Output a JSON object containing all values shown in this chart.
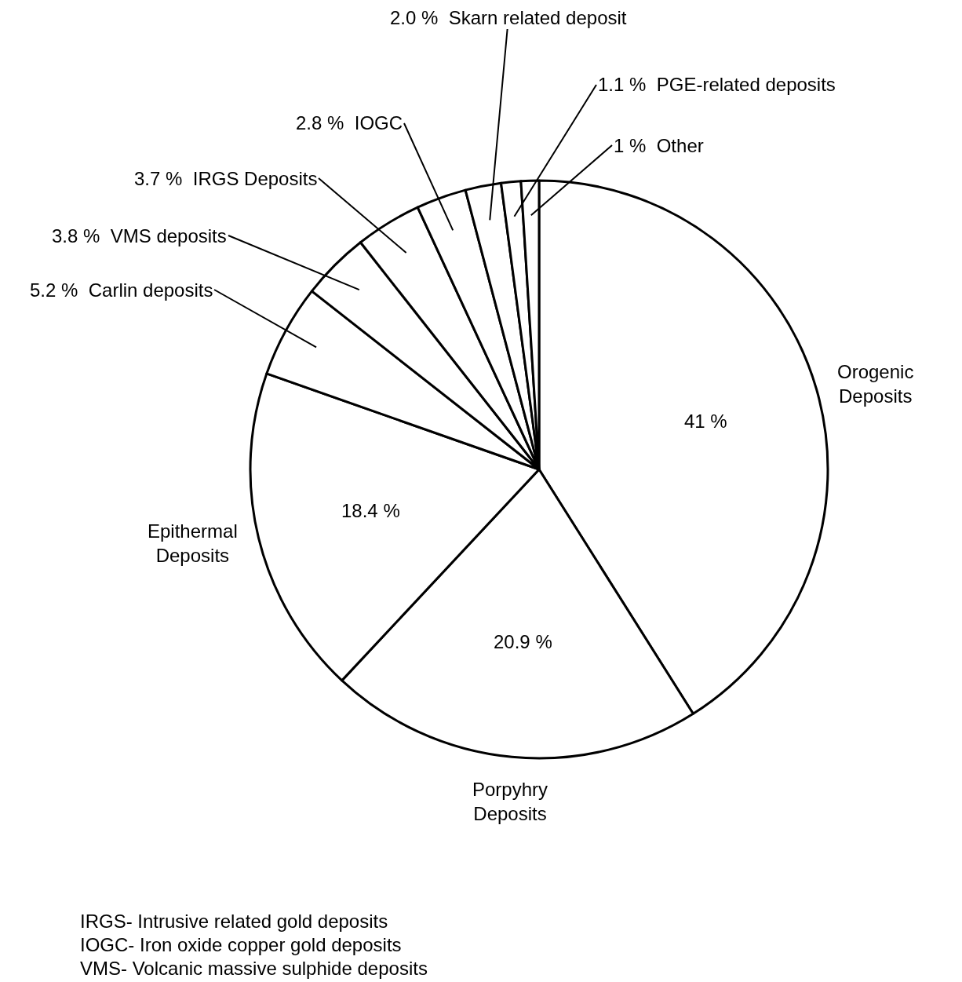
{
  "chart_data": {
    "type": "pie",
    "categories": [
      "Orogenic Deposits",
      "Porpyhry Deposits",
      "Epithermal Deposits",
      "Carlin deposits",
      "VMS deposits",
      "IRGS Deposits",
      "IOGC",
      "Skarn related deposit",
      "PGE-related deposits",
      "Other"
    ],
    "values": [
      41,
      20.9,
      18.4,
      5.2,
      3.8,
      3.7,
      2.8,
      2.0,
      1.1,
      1
    ],
    "value_labels": [
      "41 %",
      "20.9 %",
      "18.4 %",
      "5.2 %",
      "3.8 %",
      "3.7 %",
      "2.8 %",
      "2.0 %",
      "1.1 %",
      "1 %"
    ],
    "colors": [
      "#ffffff",
      "#ffffff",
      "#ffffff",
      "#ffffff",
      "#ffffff",
      "#ffffff",
      "#ffffff",
      "#ffffff",
      "#ffffff",
      "#ffffff"
    ],
    "annotations": [
      "IRGS- Intrusive related gold deposits",
      "IOGC- Iron oxide copper gold deposits",
      "VMS- Volcanic massive sulphide deposits"
    ]
  }
}
